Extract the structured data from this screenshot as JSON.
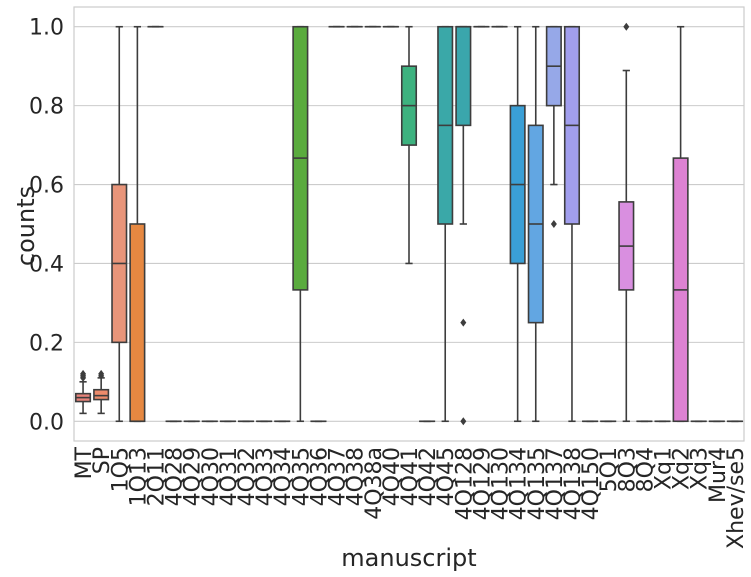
{
  "chart_data": {
    "type": "box",
    "xlabel": "manuscript",
    "ylabel": "counts",
    "ylim": [
      -0.05,
      1.05
    ],
    "yticks": [
      0.0,
      0.2,
      0.4,
      0.6,
      0.8,
      1.0
    ],
    "ytick_labels": [
      "0.0",
      "0.2",
      "0.4",
      "0.6",
      "0.8",
      "1.0"
    ],
    "grid": "horizontal",
    "categories": [
      "MT",
      "SP",
      "1Q5",
      "1Q13",
      "2Q11",
      "4Q28",
      "4Q29",
      "4Q30",
      "4Q31",
      "4Q32",
      "4Q33",
      "4Q34",
      "4Q35",
      "4Q36",
      "4Q37",
      "4Q38",
      "4Q38a",
      "4Q40",
      "4Q41",
      "4Q42",
      "4Q45",
      "4Q128",
      "4Q129",
      "4Q130",
      "4Q134",
      "4Q135",
      "4Q137",
      "4Q138",
      "4Q150",
      "5Q1",
      "8Q3",
      "8Q4",
      "Xq1",
      "Xq2",
      "Xq3",
      "Mur4",
      "Xhev/se5"
    ],
    "boxes": [
      {
        "whislo": 0.02,
        "q1": 0.05,
        "med": 0.06,
        "q3": 0.07,
        "whishi": 0.1,
        "fliers": [
          0.11,
          0.115,
          0.12
        ],
        "color": "#e8837a"
      },
      {
        "whislo": 0.02,
        "q1": 0.055,
        "med": 0.065,
        "q3": 0.08,
        "whishi": 0.11,
        "fliers": [
          0.115,
          0.12
        ],
        "color": "#ed8b6b"
      },
      {
        "whislo": 0.0,
        "q1": 0.2,
        "med": 0.4,
        "q3": 0.6,
        "whishi": 1.0,
        "fliers": [],
        "color": "#e8957a"
      },
      {
        "whislo": 0.0,
        "q1": 0.0,
        "med": 0.0,
        "q3": 0.5,
        "whishi": 1.0,
        "fliers": [],
        "color": "#e68841"
      },
      {
        "whislo": 1.0,
        "q1": 1.0,
        "med": 1.0,
        "q3": 1.0,
        "whishi": 1.0,
        "fliers": [],
        "color": "#d69a3a"
      },
      {
        "whislo": 0.0,
        "q1": 0.0,
        "med": 0.0,
        "q3": 0.0,
        "whishi": 0.0,
        "fliers": [],
        "color": "#c8a038"
      },
      {
        "whislo": 0.0,
        "q1": 0.0,
        "med": 0.0,
        "q3": 0.0,
        "whishi": 0.0,
        "fliers": [],
        "color": "#b8a636"
      },
      {
        "whislo": 0.0,
        "q1": 0.0,
        "med": 0.0,
        "q3": 0.0,
        "whishi": 0.0,
        "fliers": [],
        "color": "#a8aa35"
      },
      {
        "whislo": 0.0,
        "q1": 0.0,
        "med": 0.0,
        "q3": 0.0,
        "whishi": 0.0,
        "fliers": [],
        "color": "#96ae36"
      },
      {
        "whislo": 0.0,
        "q1": 0.0,
        "med": 0.0,
        "q3": 0.0,
        "whishi": 0.0,
        "fliers": [],
        "color": "#82b13a"
      },
      {
        "whislo": 0.0,
        "q1": 0.0,
        "med": 0.0,
        "q3": 0.0,
        "whishi": 0.0,
        "fliers": [],
        "color": "#6cb43f"
      },
      {
        "whislo": 0.0,
        "q1": 0.0,
        "med": 0.0,
        "q3": 0.0,
        "whishi": 0.0,
        "fliers": [],
        "color": "#5ab547"
      },
      {
        "whislo": 0.0,
        "q1": 0.333,
        "med": 0.667,
        "q3": 1.0,
        "whishi": 1.0,
        "fliers": [],
        "color": "#5aab3e"
      },
      {
        "whislo": 0.0,
        "q1": 0.0,
        "med": 0.0,
        "q3": 0.0,
        "whishi": 0.0,
        "fliers": [],
        "color": "#3fb57a"
      },
      {
        "whislo": 1.0,
        "q1": 1.0,
        "med": 1.0,
        "q3": 1.0,
        "whishi": 1.0,
        "fliers": [],
        "color": "#3ab58c"
      },
      {
        "whislo": 1.0,
        "q1": 1.0,
        "med": 1.0,
        "q3": 1.0,
        "whishi": 1.0,
        "fliers": [],
        "color": "#38b59a"
      },
      {
        "whislo": 1.0,
        "q1": 1.0,
        "med": 1.0,
        "q3": 1.0,
        "whishi": 1.0,
        "fliers": [],
        "color": "#37b4a6"
      },
      {
        "whislo": 1.0,
        "q1": 1.0,
        "med": 1.0,
        "q3": 1.0,
        "whishi": 1.0,
        "fliers": [],
        "color": "#38b3b0"
      },
      {
        "whislo": 0.4,
        "q1": 0.7,
        "med": 0.8,
        "q3": 0.9,
        "whishi": 1.0,
        "fliers": [],
        "color": "#3db27f"
      },
      {
        "whislo": 0.0,
        "q1": 0.0,
        "med": 0.0,
        "q3": 0.0,
        "whishi": 0.0,
        "fliers": [],
        "color": "#3ab0b8"
      },
      {
        "whislo": 0.0,
        "q1": 0.5,
        "med": 0.75,
        "q3": 1.0,
        "whishi": 1.0,
        "fliers": [],
        "color": "#3aa8a8"
      },
      {
        "whislo": 0.5,
        "q1": 0.75,
        "med": 1.0,
        "q3": 1.0,
        "whishi": 1.0,
        "fliers": [
          0.25,
          0.0
        ],
        "color": "#3aa6ac"
      },
      {
        "whislo": 1.0,
        "q1": 1.0,
        "med": 1.0,
        "q3": 1.0,
        "whishi": 1.0,
        "fliers": [],
        "color": "#3bafc4"
      },
      {
        "whislo": 1.0,
        "q1": 1.0,
        "med": 1.0,
        "q3": 1.0,
        "whishi": 1.0,
        "fliers": [],
        "color": "#3dadcc"
      },
      {
        "whislo": 0.0,
        "q1": 0.4,
        "med": 0.6,
        "q3": 0.8,
        "whishi": 1.0,
        "fliers": [],
        "color": "#3a9fd6"
      },
      {
        "whislo": 0.0,
        "q1": 0.25,
        "med": 0.5,
        "q3": 0.75,
        "whishi": 1.0,
        "fliers": [],
        "color": "#62a6e2"
      },
      {
        "whislo": 0.6,
        "q1": 0.8,
        "med": 0.9,
        "q3": 1.0,
        "whishi": 1.0,
        "fliers": [
          0.5
        ],
        "color": "#96a8e8"
      },
      {
        "whislo": 0.0,
        "q1": 0.5,
        "med": 0.75,
        "q3": 1.0,
        "whishi": 1.0,
        "fliers": [],
        "color": "#a19eee"
      },
      {
        "whislo": 0.0,
        "q1": 0.0,
        "med": 0.0,
        "q3": 0.0,
        "whishi": 0.0,
        "fliers": [],
        "color": "#b49aee"
      },
      {
        "whislo": 0.0,
        "q1": 0.0,
        "med": 0.0,
        "q3": 0.0,
        "whishi": 0.0,
        "fliers": [],
        "color": "#c696ea"
      },
      {
        "whislo": 0.0,
        "q1": 0.333,
        "med": 0.444,
        "q3": 0.556,
        "whishi": 0.889,
        "fliers": [
          1.0
        ],
        "color": "#d98fe0"
      },
      {
        "whislo": 0.0,
        "q1": 0.0,
        "med": 0.0,
        "q3": 0.0,
        "whishi": 0.0,
        "fliers": [],
        "color": "#e08cd6"
      },
      {
        "whislo": 0.0,
        "q1": 0.0,
        "med": 0.0,
        "q3": 0.0,
        "whishi": 0.0,
        "fliers": [],
        "color": "#e28acb"
      },
      {
        "whislo": 0.0,
        "q1": 0.0,
        "med": 0.333,
        "q3": 0.667,
        "whishi": 1.0,
        "fliers": [],
        "color": "#dd82d2"
      },
      {
        "whislo": 0.0,
        "q1": 0.0,
        "med": 0.0,
        "q3": 0.0,
        "whishi": 0.0,
        "fliers": [],
        "color": "#e488b8"
      },
      {
        "whislo": 0.0,
        "q1": 0.0,
        "med": 0.0,
        "q3": 0.0,
        "whishi": 0.0,
        "fliers": [],
        "color": "#e688aa"
      },
      {
        "whislo": 0.0,
        "q1": 0.0,
        "med": 0.0,
        "q3": 0.0,
        "whishi": 0.0,
        "fliers": [],
        "color": "#e8889c"
      }
    ]
  }
}
